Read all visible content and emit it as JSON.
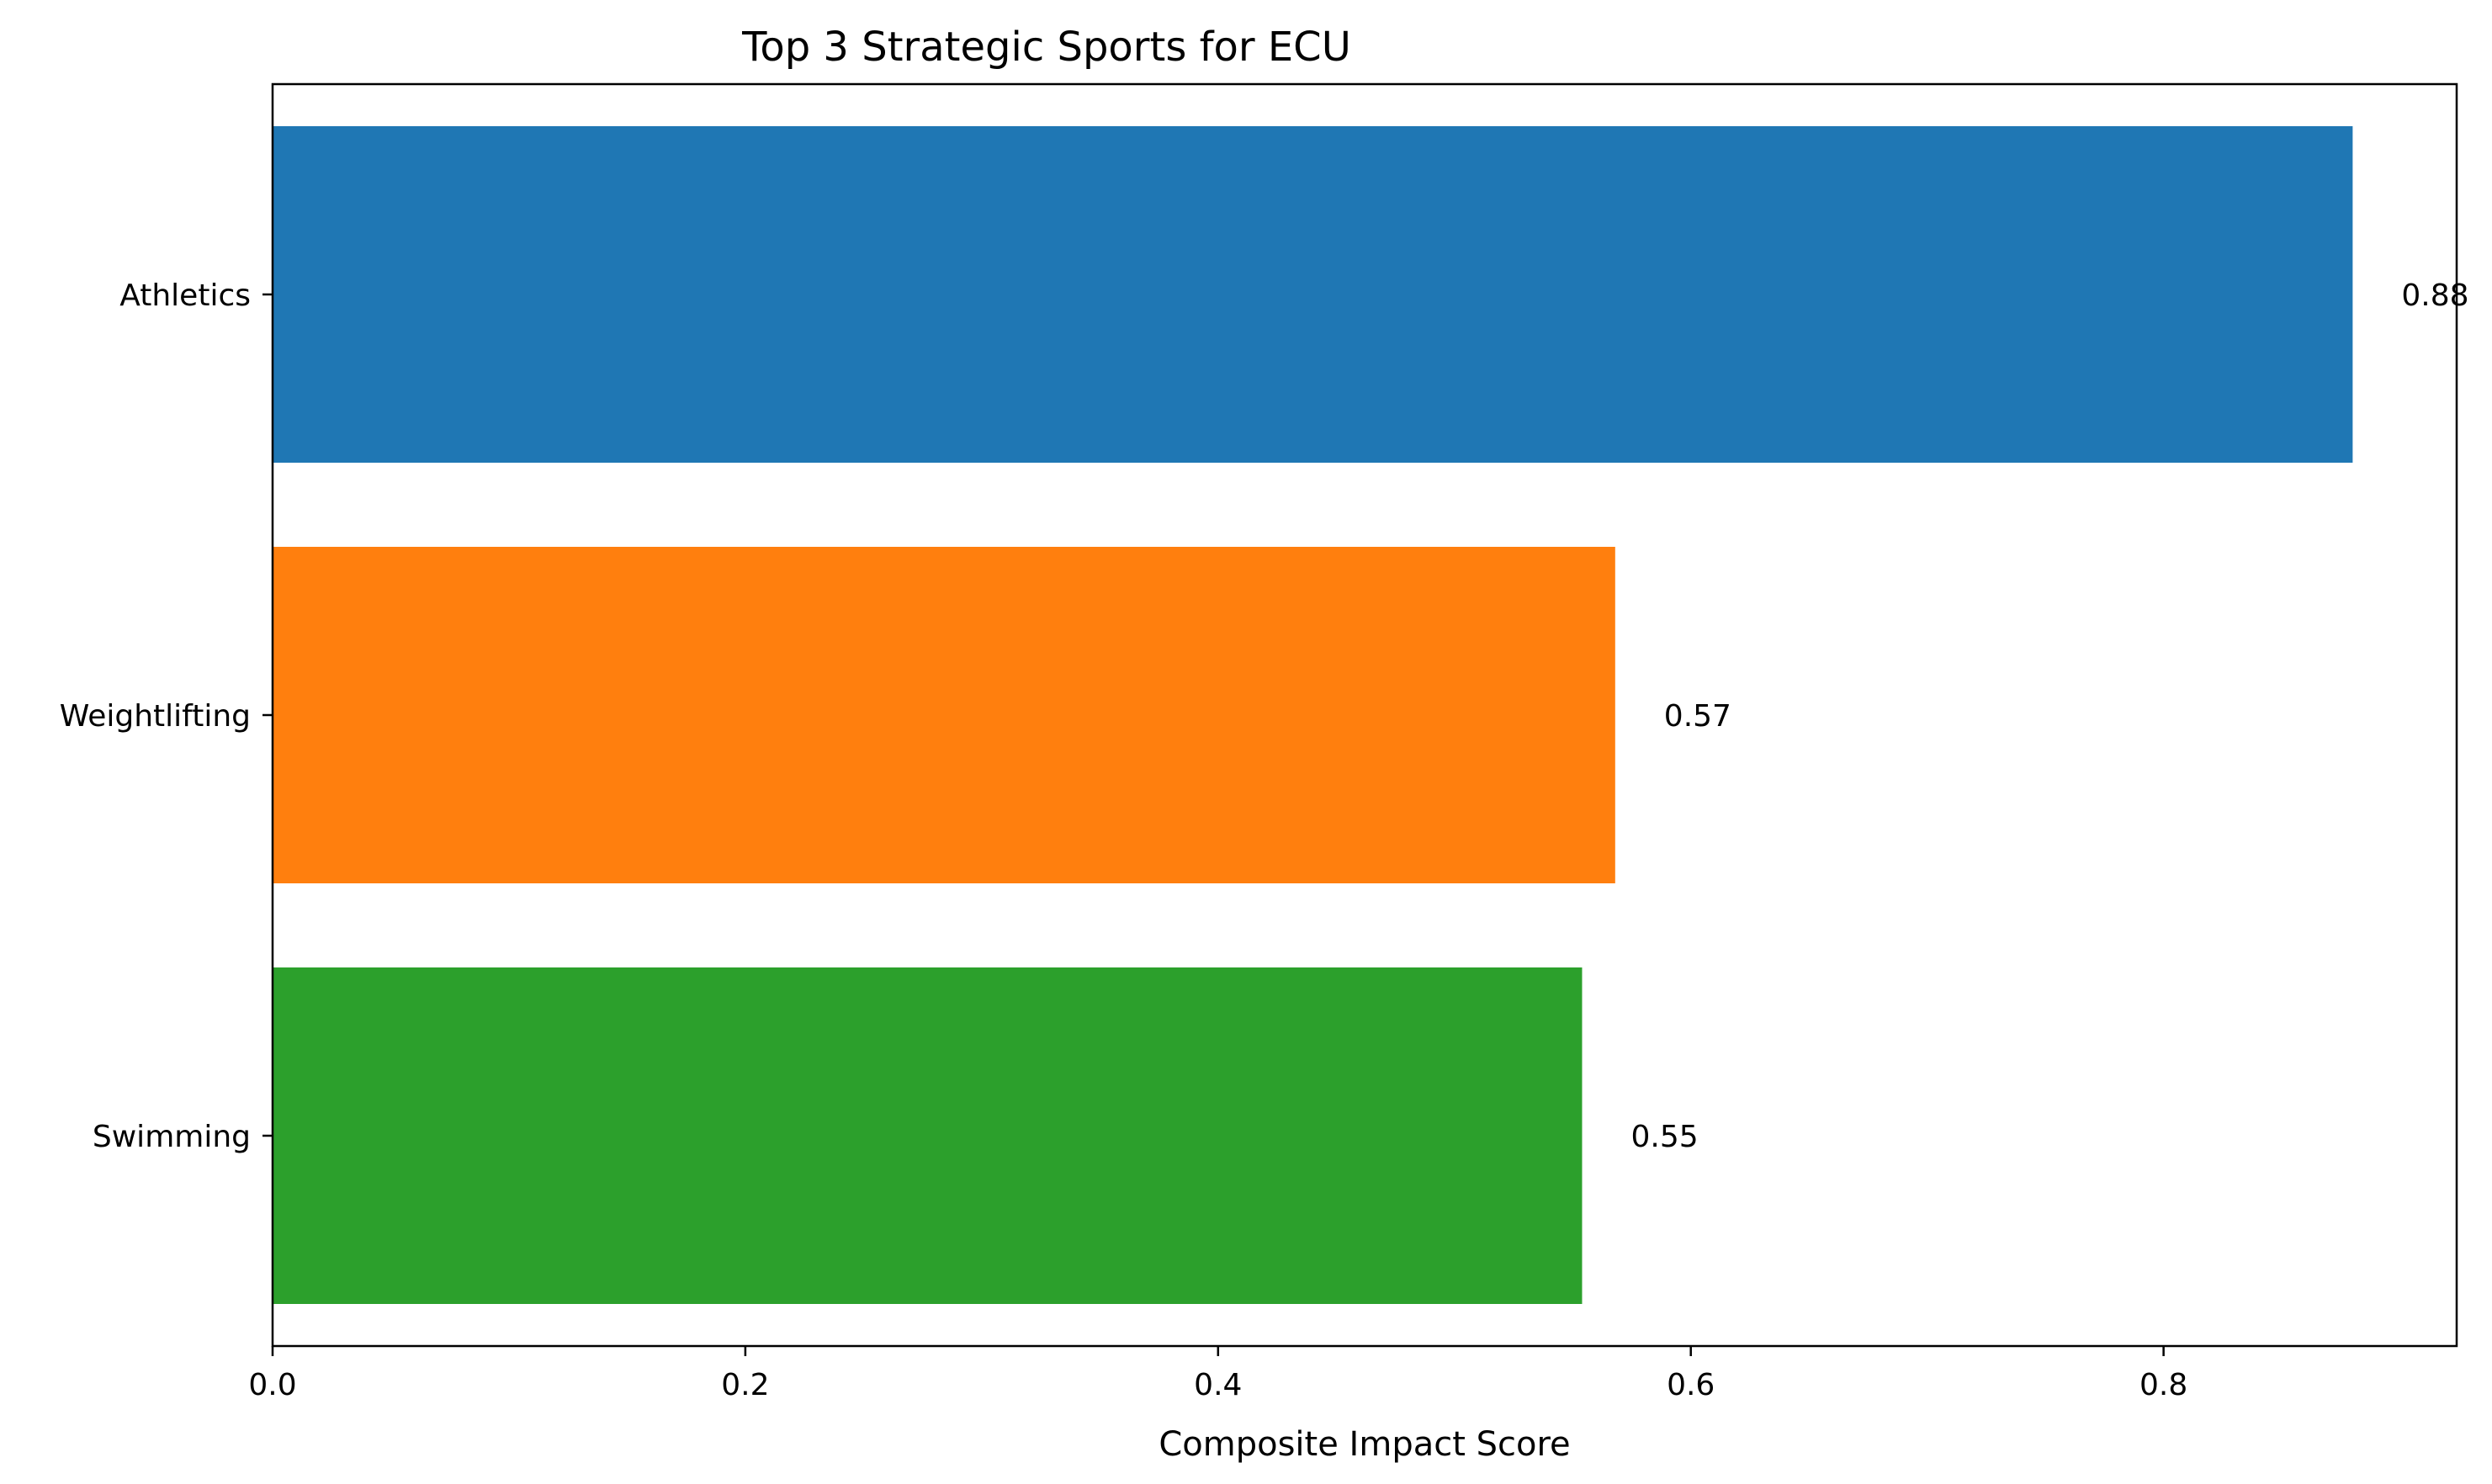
{
  "chart_data": {
    "type": "bar",
    "orientation": "horizontal",
    "title": "Top 3 Strategic Sports for ECU",
    "xlabel": "Composite Impact Score",
    "ylabel": "",
    "categories": [
      "Athletics",
      "Weightlifting",
      "Swimming"
    ],
    "values": [
      0.88,
      0.568,
      0.554
    ],
    "value_labels": [
      "0.88",
      "0.57",
      "0.55"
    ],
    "colors": [
      "#1f77b4",
      "#ff7f0e",
      "#2ca02c"
    ],
    "xlim": [
      0,
      0.924
    ],
    "xticks": [
      0.0,
      0.2,
      0.4,
      0.6,
      0.8
    ],
    "xtick_labels": [
      "0.0",
      "0.2",
      "0.4",
      "0.6",
      "0.8"
    ],
    "grid": false,
    "legend": false
  }
}
